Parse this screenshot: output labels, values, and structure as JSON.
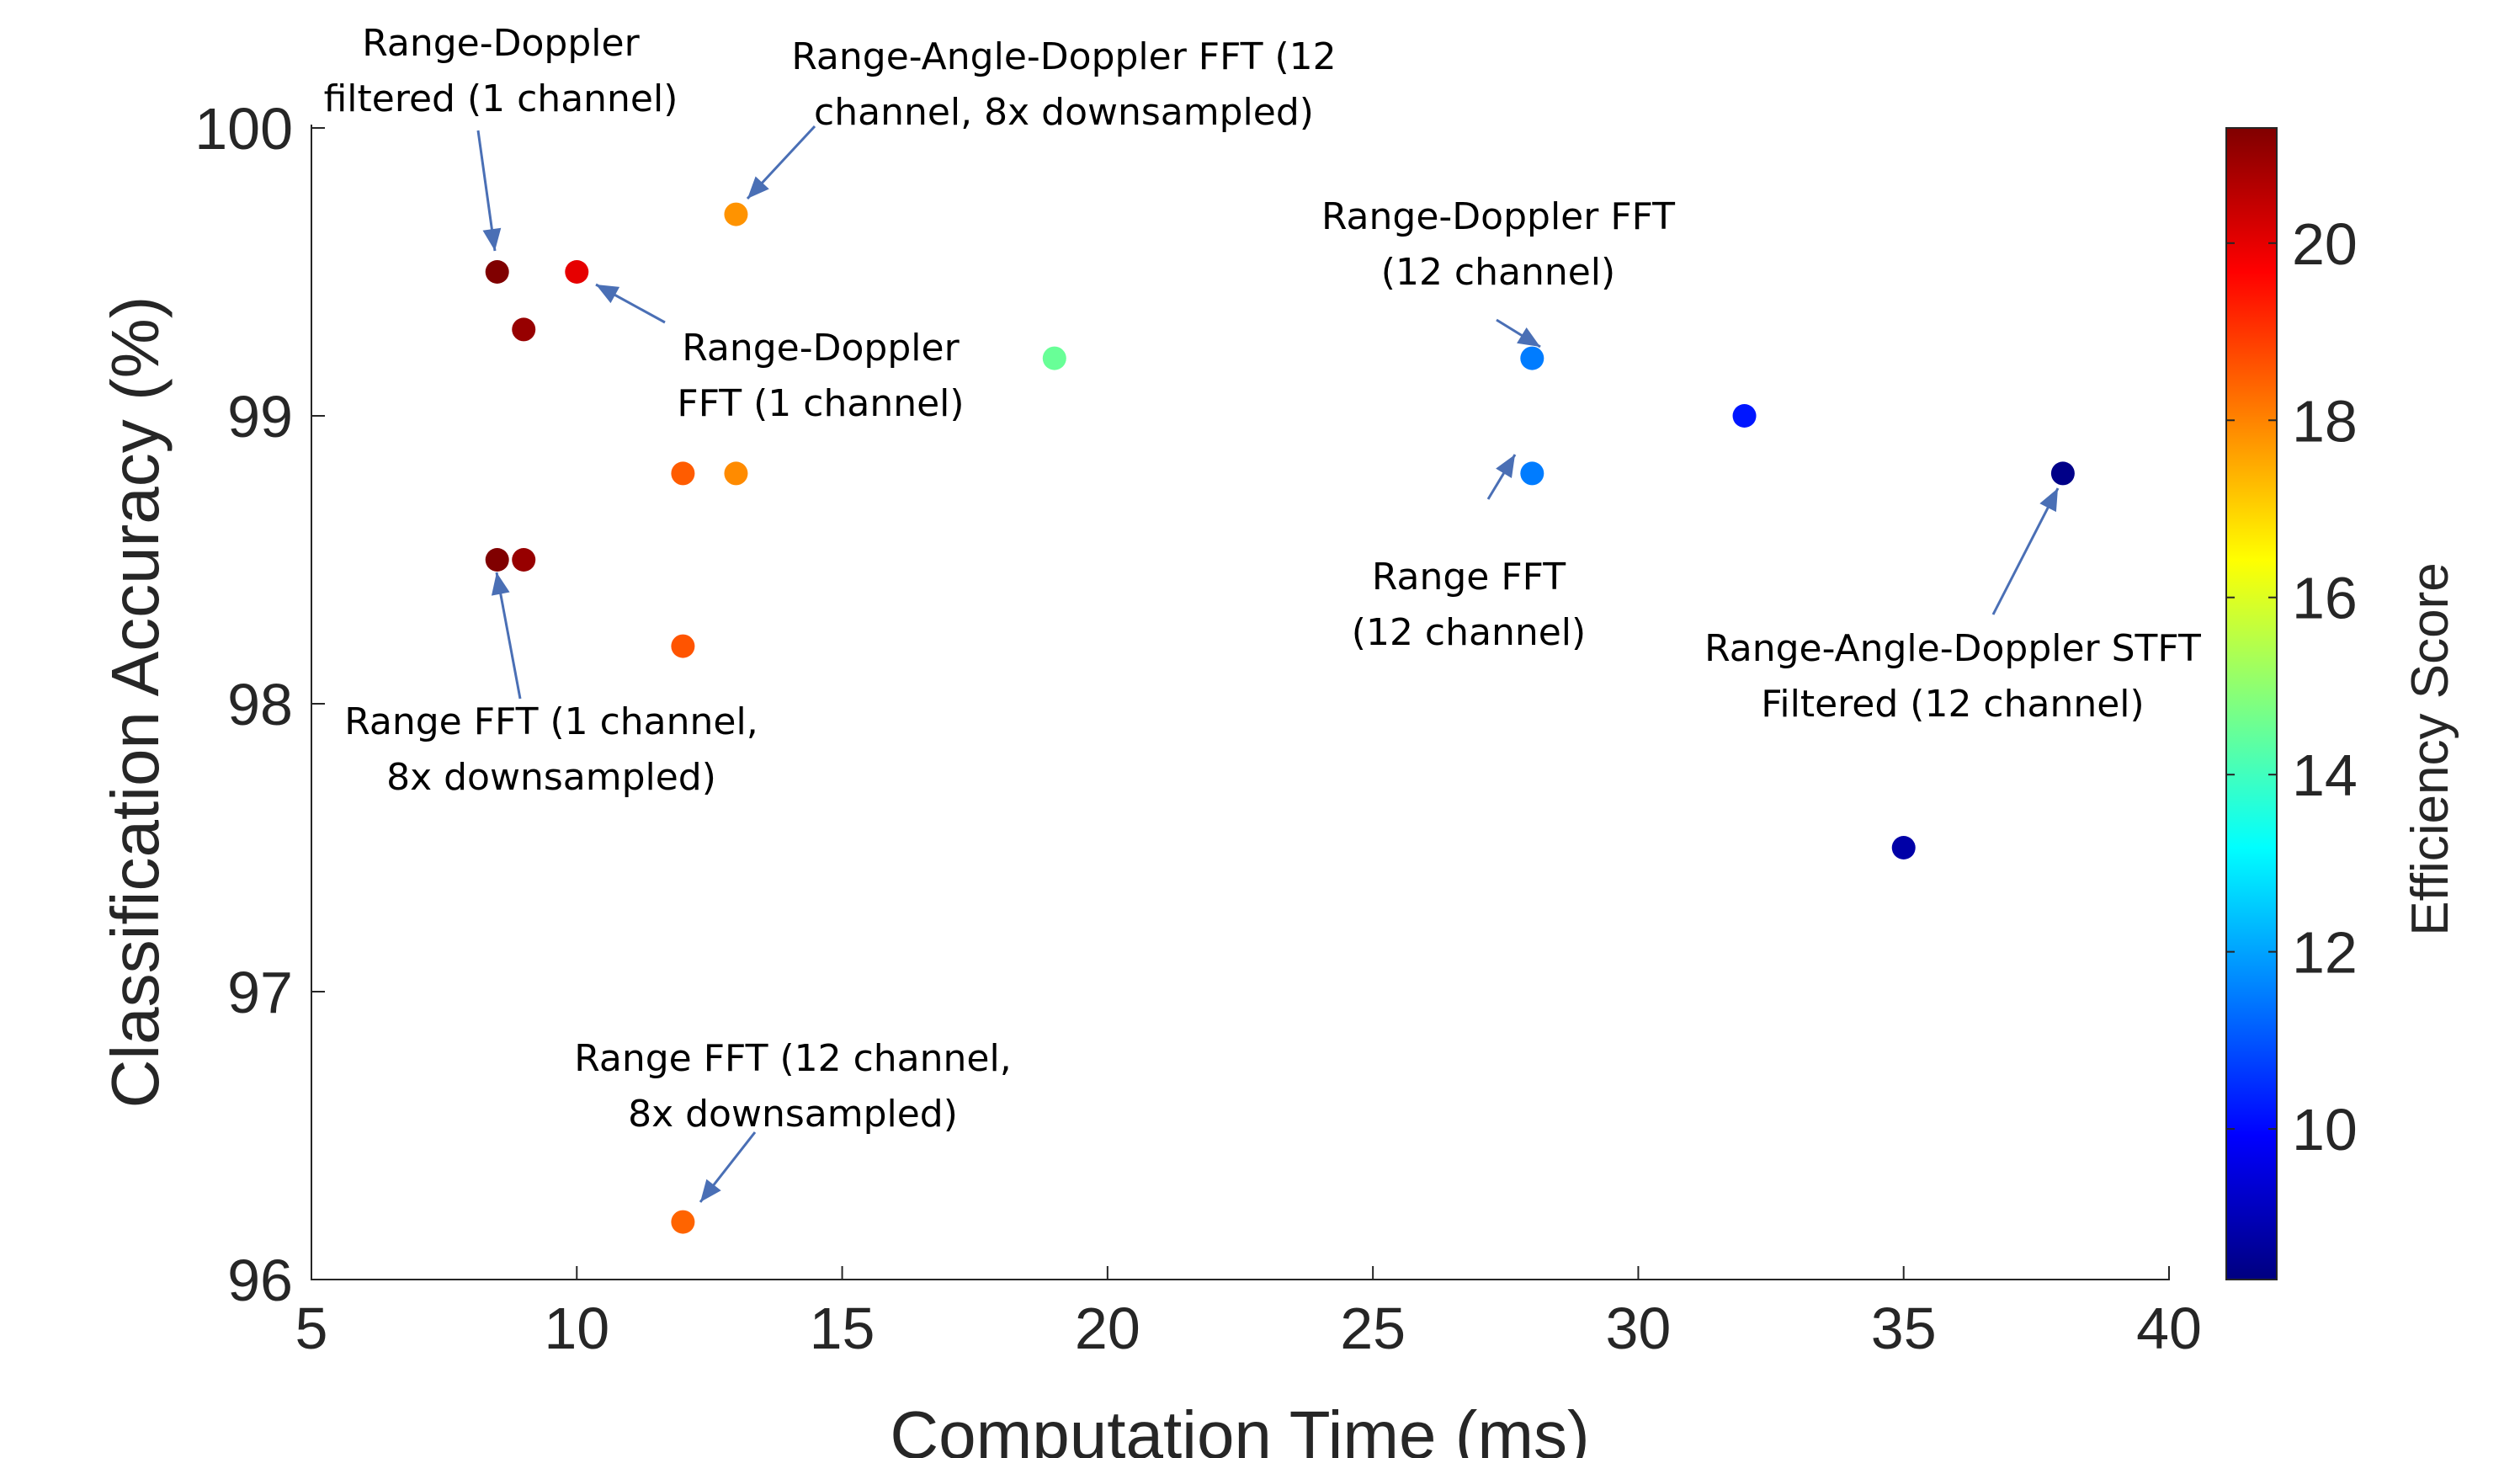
{
  "chart_data": {
    "type": "scatter",
    "xlabel": "Computation Time (ms)",
    "ylabel": "Classification Accuracy (%)",
    "xlim": [
      5,
      40
    ],
    "ylim": [
      96,
      100
    ],
    "xticks": [
      "5",
      "10",
      "15",
      "20",
      "25",
      "30",
      "35",
      "40"
    ],
    "yticks": [
      "96",
      "97",
      "98",
      "99",
      "100"
    ],
    "colorbar": {
      "label": "Efficiency Score",
      "range": [
        8.3,
        21.3
      ],
      "ticks": [
        "10",
        "12",
        "14",
        "16",
        "18",
        "20"
      ],
      "colormap": "jet"
    },
    "points": [
      {
        "x": 8.5,
        "y": 99.5,
        "score": 21.3
      },
      {
        "x": 9.0,
        "y": 99.3,
        "score": 21.0
      },
      {
        "x": 10.0,
        "y": 99.5,
        "score": 20.0
      },
      {
        "x": 13.0,
        "y": 99.7,
        "score": 17.8
      },
      {
        "x": 19.0,
        "y": 99.2,
        "score": 14.5
      },
      {
        "x": 12.0,
        "y": 98.8,
        "score": 18.5
      },
      {
        "x": 13.0,
        "y": 98.8,
        "score": 17.9
      },
      {
        "x": 8.5,
        "y": 98.5,
        "score": 21.3
      },
      {
        "x": 9.0,
        "y": 98.5,
        "score": 21.0
      },
      {
        "x": 12.0,
        "y": 98.2,
        "score": 18.6
      },
      {
        "x": 12.0,
        "y": 96.2,
        "score": 18.4
      },
      {
        "x": 28.0,
        "y": 99.2,
        "score": 11.5
      },
      {
        "x": 28.0,
        "y": 98.8,
        "score": 11.5
      },
      {
        "x": 32.0,
        "y": 99.0,
        "score": 10.2
      },
      {
        "x": 35.0,
        "y": 97.5,
        "score": 8.8
      },
      {
        "x": 38.0,
        "y": 98.8,
        "score": 8.4
      }
    ],
    "annotations": [
      {
        "lines": [
          "Range-Doppler",
          "filtered (1 channel)"
        ],
        "color": "#ff0000"
      },
      {
        "lines": [
          "Range-Angle-Doppler FFT (12",
          "channel, 8x downsampled)"
        ],
        "color": "#000000"
      },
      {
        "lines": [
          "Range-Doppler",
          "FFT (1 channel)"
        ],
        "color": "#000000"
      },
      {
        "lines": [
          "Range-Doppler FFT",
          "(12 channel)"
        ],
        "color": "#000000"
      },
      {
        "lines": [
          "Range FFT",
          "(12 channel)"
        ],
        "color": "#000000"
      },
      {
        "lines": [
          "Range-Angle-Doppler STFT",
          "Filtered (12 channel)"
        ],
        "color": "#000000"
      },
      {
        "lines": [
          "Range FFT (1 channel,",
          "8x downsampled)"
        ],
        "color": "#000000"
      },
      {
        "lines": [
          "Range FFT (12 channel,",
          "8x downsampled)"
        ],
        "color": "#000000"
      }
    ]
  }
}
